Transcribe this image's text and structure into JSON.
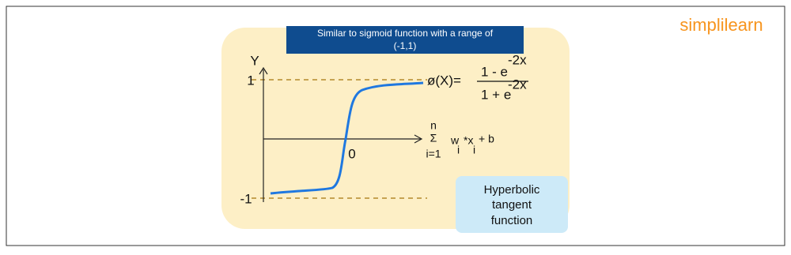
{
  "logo": "simplilearn",
  "banner": {
    "lines": [
      "Similar to sigmoid function with a range of",
      "(-1,1)"
    ]
  },
  "graph": {
    "y_axis_label": "Y",
    "y_top_label": "1",
    "y_bottom_label": "-1",
    "origin_label": "0"
  },
  "formula": {
    "lhs": "ø(X)=",
    "numerator": "1 - e",
    "numerator_exp": "-2x",
    "denominator": "1 + e",
    "denominator_exp": "-2x"
  },
  "sum": {
    "upper": "n",
    "symbol": "Σ",
    "lower": "i=1",
    "w": "w",
    "w_sub": "i",
    "x": "*x",
    "x_sub": "i",
    "bias": "+ b"
  },
  "caption": {
    "lines": [
      "Hyperbolic",
      "tangent",
      "function"
    ]
  }
}
